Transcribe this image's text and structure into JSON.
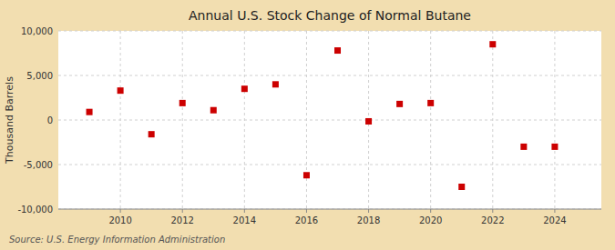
{
  "chart_data": {
    "type": "scatter",
    "title": "Annual U.S. Stock Change of Normal Butane",
    "ylabel": "Thousand Barrels",
    "source": "Source: U.S. Energy Information Administration",
    "x": [
      2009,
      2010,
      2011,
      2012,
      2013,
      2014,
      2015,
      2016,
      2017,
      2018,
      2019,
      2020,
      2021,
      2022,
      2023,
      2024
    ],
    "values": [
      900,
      3300,
      -1600,
      1900,
      1100,
      3500,
      4000,
      -6200,
      7800,
      -150,
      1800,
      1900,
      -7500,
      8500,
      -3000,
      -3000
    ],
    "color": "#cc0000",
    "marker": "square",
    "xlim": [
      2008.0,
      2025.5
    ],
    "xticks": [
      2010,
      2012,
      2014,
      2016,
      2018,
      2020,
      2022,
      2024
    ],
    "ylim": [
      -10000,
      10000
    ],
    "yticks": [
      {
        "value": -10000,
        "label": "-10,000"
      },
      {
        "value": -5000,
        "label": "-5,000"
      },
      {
        "value": 0,
        "label": "0"
      },
      {
        "value": 5000,
        "label": "5,000"
      },
      {
        "value": 10000,
        "label": "10,000"
      }
    ],
    "grid": true
  }
}
